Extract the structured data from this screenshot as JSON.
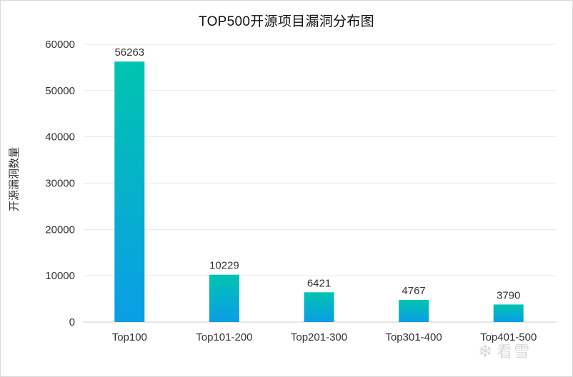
{
  "chart_data": {
    "type": "bar",
    "title": "TOP500开源项目漏洞分布图",
    "ylabel": "开源漏洞数量",
    "xlabel": "",
    "categories": [
      "Top100",
      "Top101-200",
      "Top201-300",
      "Top301-400",
      "Top401-500"
    ],
    "values": [
      56263,
      10229,
      6421,
      4767,
      3790
    ],
    "ylim": [
      0,
      60000
    ],
    "yticks": [
      0,
      10000,
      20000,
      30000,
      40000,
      50000,
      60000
    ],
    "grid": true,
    "legend": "none",
    "bar_gradient": [
      "#00c4b0",
      "#0a9ee6"
    ]
  },
  "watermark": {
    "icon": "snowflake-icon",
    "text": "看雪"
  }
}
